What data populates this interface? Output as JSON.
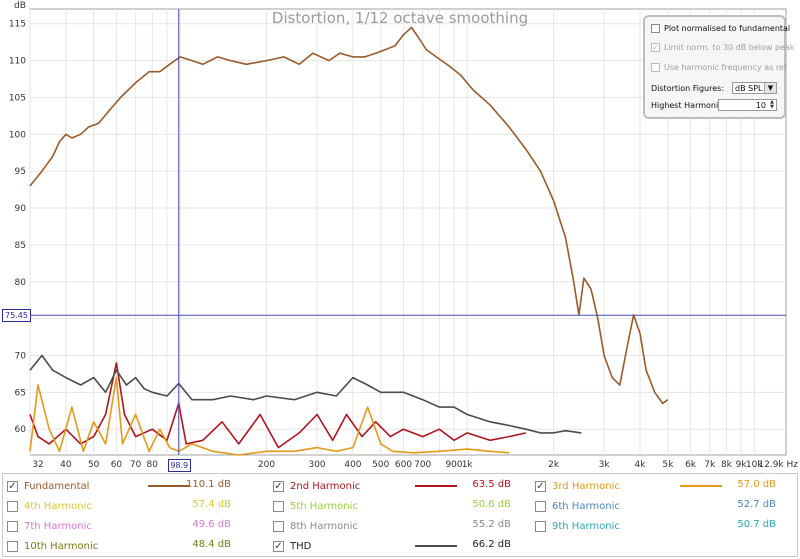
{
  "chart_data": {
    "type": "line",
    "title": "Distortion, 1/12 octave smoothing",
    "ylabel": "dB",
    "x_scale": "log",
    "xlim": [
      30,
      12900
    ],
    "ylim": [
      56.5,
      117
    ],
    "grid": true,
    "y_ticks": [
      60,
      65,
      70,
      75,
      80,
      85,
      90,
      95,
      100,
      105,
      110,
      115
    ],
    "x_ticks": [
      {
        "v": 32,
        "label": "32"
      },
      {
        "v": 40,
        "label": "40"
      },
      {
        "v": 50,
        "label": "50"
      },
      {
        "v": 60,
        "label": "60"
      },
      {
        "v": 70,
        "label": "70"
      },
      {
        "v": 80,
        "label": "80"
      },
      {
        "v": 200,
        "label": "200"
      },
      {
        "v": 300,
        "label": "300"
      },
      {
        "v": 400,
        "label": "400"
      },
      {
        "v": 500,
        "label": "500"
      },
      {
        "v": 600,
        "label": "600"
      },
      {
        "v": 700,
        "label": "700"
      },
      {
        "v": 900,
        "label": "900"
      },
      {
        "v": 1000,
        "label": "1k"
      },
      {
        "v": 2000,
        "label": "2k"
      },
      {
        "v": 3000,
        "label": "3k"
      },
      {
        "v": 4000,
        "label": "4k"
      },
      {
        "v": 5000,
        "label": "5k"
      },
      {
        "v": 6000,
        "label": "6k"
      },
      {
        "v": 7000,
        "label": "7k"
      },
      {
        "v": 8000,
        "label": "8k"
      },
      {
        "v": 9000,
        "label": "9k"
      },
      {
        "v": 10000,
        "label": "10k"
      },
      {
        "v": 12900,
        "label": "12.9k Hz"
      }
    ],
    "cursor": {
      "x": 98.9,
      "y": 75.45,
      "x_label": "98.9",
      "y_label": "75.45"
    },
    "series": [
      {
        "name": "Fundamental",
        "color": "#9b5a2a",
        "points": [
          [
            30,
            93
          ],
          [
            33,
            95
          ],
          [
            36,
            97
          ],
          [
            38,
            99
          ],
          [
            40,
            100
          ],
          [
            42,
            99.5
          ],
          [
            45,
            100
          ],
          [
            48,
            101
          ],
          [
            52,
            101.5
          ],
          [
            56,
            103
          ],
          [
            62,
            105
          ],
          [
            70,
            107
          ],
          [
            78,
            108.5
          ],
          [
            85,
            108.5
          ],
          [
            92,
            109.5
          ],
          [
            100,
            110.5
          ],
          [
            110,
            110
          ],
          [
            120,
            109.5
          ],
          [
            135,
            110.5
          ],
          [
            150,
            110
          ],
          [
            170,
            109.5
          ],
          [
            200,
            110
          ],
          [
            230,
            110.5
          ],
          [
            260,
            109.5
          ],
          [
            290,
            111
          ],
          [
            330,
            110
          ],
          [
            360,
            111
          ],
          [
            400,
            110.5
          ],
          [
            440,
            110.5
          ],
          [
            480,
            111
          ],
          [
            520,
            111.5
          ],
          [
            560,
            112
          ],
          [
            600,
            113.5
          ],
          [
            640,
            114.5
          ],
          [
            680,
            113
          ],
          [
            720,
            111.5
          ],
          [
            780,
            110.5
          ],
          [
            850,
            109.5
          ],
          [
            950,
            108
          ],
          [
            1050,
            106
          ],
          [
            1200,
            104
          ],
          [
            1400,
            101
          ],
          [
            1600,
            98
          ],
          [
            1800,
            95
          ],
          [
            2000,
            91
          ],
          [
            2200,
            86
          ],
          [
            2350,
            80
          ],
          [
            2450,
            75.5
          ],
          [
            2550,
            80.5
          ],
          [
            2700,
            79
          ],
          [
            2850,
            75
          ],
          [
            3000,
            70
          ],
          [
            3200,
            67
          ],
          [
            3400,
            66
          ],
          [
            3600,
            71
          ],
          [
            3800,
            75.5
          ],
          [
            4000,
            73
          ],
          [
            4200,
            68
          ],
          [
            4500,
            65
          ],
          [
            4800,
            63.5
          ],
          [
            5000,
            64
          ]
        ]
      },
      {
        "name": "2nd Harmonic",
        "color": "#b0141c",
        "points": [
          [
            30,
            62
          ],
          [
            32,
            59
          ],
          [
            35,
            58
          ],
          [
            40,
            60
          ],
          [
            45,
            58
          ],
          [
            50,
            59
          ],
          [
            55,
            62
          ],
          [
            60,
            69
          ],
          [
            64,
            62
          ],
          [
            70,
            59
          ],
          [
            80,
            60
          ],
          [
            90,
            58.5
          ],
          [
            98.9,
            63.5
          ],
          [
            105,
            58
          ],
          [
            120,
            58.5
          ],
          [
            140,
            61
          ],
          [
            160,
            58
          ],
          [
            190,
            62
          ],
          [
            220,
            57.5
          ],
          [
            260,
            59.5
          ],
          [
            300,
            62
          ],
          [
            340,
            58.5
          ],
          [
            380,
            62
          ],
          [
            430,
            59
          ],
          [
            480,
            61
          ],
          [
            540,
            59
          ],
          [
            600,
            60
          ],
          [
            700,
            59
          ],
          [
            800,
            60
          ],
          [
            900,
            58.5
          ],
          [
            1000,
            59.5
          ],
          [
            1200,
            58.5
          ],
          [
            1400,
            59
          ],
          [
            1600,
            59.5
          ]
        ]
      },
      {
        "name": "3rd Harmonic",
        "color": "#e39a18",
        "points": [
          [
            30,
            57
          ],
          [
            32,
            66
          ],
          [
            35,
            60
          ],
          [
            38,
            57
          ],
          [
            42,
            63
          ],
          [
            46,
            57
          ],
          [
            50,
            61
          ],
          [
            55,
            58
          ],
          [
            60,
            67
          ],
          [
            63,
            58
          ],
          [
            70,
            62
          ],
          [
            78,
            57
          ],
          [
            85,
            60
          ],
          [
            92,
            57.5
          ],
          [
            98.9,
            57
          ],
          [
            110,
            58
          ],
          [
            130,
            57
          ],
          [
            160,
            56.5
          ],
          [
            200,
            57
          ],
          [
            250,
            57
          ],
          [
            300,
            57.5
          ],
          [
            350,
            57
          ],
          [
            400,
            57.5
          ],
          [
            450,
            63
          ],
          [
            500,
            58
          ],
          [
            550,
            57
          ],
          [
            650,
            56.8
          ],
          [
            800,
            57
          ],
          [
            1000,
            57.3
          ],
          [
            1200,
            57
          ],
          [
            1400,
            56.8
          ]
        ]
      },
      {
        "name": "THD",
        "color": "#4b4b4b",
        "points": [
          [
            30,
            68
          ],
          [
            33,
            70
          ],
          [
            36,
            68
          ],
          [
            40,
            67
          ],
          [
            45,
            66
          ],
          [
            50,
            67
          ],
          [
            55,
            65
          ],
          [
            60,
            68
          ],
          [
            65,
            66
          ],
          [
            70,
            67
          ],
          [
            75,
            65.5
          ],
          [
            80,
            65
          ],
          [
            90,
            64.5
          ],
          [
            98.9,
            66.2
          ],
          [
            110,
            64
          ],
          [
            130,
            64
          ],
          [
            150,
            64.5
          ],
          [
            180,
            64
          ],
          [
            200,
            64.5
          ],
          [
            250,
            64
          ],
          [
            300,
            65
          ],
          [
            350,
            64.5
          ],
          [
            400,
            67
          ],
          [
            450,
            66
          ],
          [
            500,
            65
          ],
          [
            600,
            65
          ],
          [
            700,
            64
          ],
          [
            800,
            63
          ],
          [
            900,
            63
          ],
          [
            1000,
            62
          ],
          [
            1200,
            61
          ],
          [
            1400,
            60.5
          ],
          [
            1600,
            60
          ],
          [
            1800,
            59.5
          ],
          [
            2000,
            59.5
          ],
          [
            2200,
            59.8
          ],
          [
            2500,
            59.5
          ]
        ]
      }
    ]
  },
  "options_panel": {
    "plot_normalised": {
      "label": "Plot normalised to fundamental",
      "checked": false
    },
    "limit_norm": {
      "label": "Limit norm. to 30 dB below peak",
      "checked": true,
      "disabled": true
    },
    "use_harmonic_freq": {
      "label": "Use harmonic frequency as ref",
      "checked": false,
      "disabled": true
    },
    "distortion_figures": {
      "label": "Distortion Figures:",
      "value": "dB SPL"
    },
    "highest_harmonic": {
      "label": "Highest Harmonic:",
      "value": "10"
    }
  },
  "legend": [
    {
      "name": "Fundamental",
      "checked": true,
      "value": "110.1 dB",
      "color": "#9b5a2a",
      "text_color": "#9b5a2a",
      "show_line": true
    },
    {
      "name": "2nd Harmonic",
      "checked": true,
      "value": "63.5 dB",
      "color": "#b0141c",
      "text_color": "#b0141c",
      "show_line": true
    },
    {
      "name": "3rd Harmonic",
      "checked": true,
      "value": "57.0 dB",
      "color": "#e39a18",
      "text_color": "#e39a18",
      "show_line": true
    },
    {
      "name": "4th Harmonic",
      "checked": false,
      "value": "57.4 dB",
      "color": "#d6c83a",
      "text_color": "#d6c83a",
      "show_line": false
    },
    {
      "name": "5th Harmonic",
      "checked": false,
      "value": "50.6 dB",
      "color": "#9ad03a",
      "text_color": "#9ad03a",
      "show_line": false
    },
    {
      "name": "6th Harmonic",
      "checked": false,
      "value": "52.7 dB",
      "color": "#4a86c8",
      "text_color": "#4a86c8",
      "show_line": false
    },
    {
      "name": "7th Harmonic",
      "checked": false,
      "value": "49.6 dB",
      "color": "#d878d8",
      "text_color": "#d878d8",
      "show_line": false
    },
    {
      "name": "8th Harmonic",
      "checked": false,
      "value": "55.2 dB",
      "color": "#8a8a8a",
      "text_color": "#8a8a8a",
      "show_line": false
    },
    {
      "name": "9th Harmonic",
      "checked": false,
      "value": "50.7 dB",
      "color": "#26a8b8",
      "text_color": "#26a8b8",
      "show_line": false
    },
    {
      "name": "10th Harmonic",
      "checked": false,
      "value": "48.4 dB",
      "color": "#7a7a18",
      "text_color": "#7a7a18",
      "show_line": false
    },
    {
      "name": "THD",
      "checked": true,
      "value": "66.2 dB",
      "color": "#4b4b4b",
      "text_color": "#222222",
      "show_line": true
    }
  ]
}
